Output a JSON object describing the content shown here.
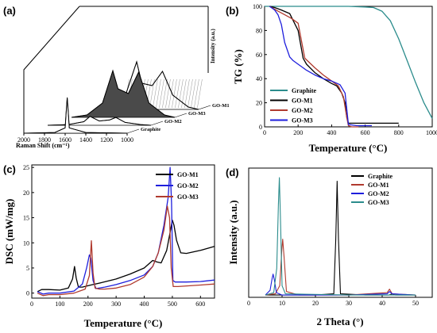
{
  "chart_data": [
    {
      "panel": "(a)",
      "type": "line",
      "style": "3d-waterfall",
      "xlabel": "Raman Shift (cm⁻¹)",
      "ylabel": "Intensity (a.u.)",
      "xticks": [
        2000,
        1800,
        1600,
        1400,
        1200,
        1000
      ],
      "series": [
        {
          "name": "Graphite",
          "x": [
            2000,
            1700,
            1600,
            1590,
            1580,
            1570,
            1560,
            1400,
            1000
          ],
          "y": [
            0,
            0.02,
            0.15,
            0.6,
            1.0,
            0.6,
            0.15,
            0.02,
            0
          ]
        },
        {
          "name": "GO-M2",
          "x": [
            2000,
            1800,
            1650,
            1590,
            1500,
            1400,
            1340,
            1250,
            1100,
            1000
          ],
          "y": [
            0,
            0.02,
            0.1,
            0.25,
            0.12,
            0.15,
            0.22,
            0.08,
            0.02,
            0
          ]
        },
        {
          "name": "GO-M3",
          "x": [
            2000,
            1850,
            1700,
            1600,
            1550,
            1450,
            1350,
            1250,
            1100,
            1000
          ],
          "y": [
            0,
            0.05,
            0.3,
            0.98,
            0.6,
            0.5,
            0.95,
            0.3,
            0.05,
            0
          ]
        },
        {
          "name": "GO-M1",
          "x": [
            2000,
            1850,
            1700,
            1600,
            1550,
            1450,
            1350,
            1250,
            1100,
            1000
          ],
          "y": [
            0,
            0.05,
            0.35,
            1.0,
            0.55,
            0.5,
            0.8,
            0.3,
            0.05,
            0
          ]
        }
      ],
      "colors": {
        "GO-M1": "#000000",
        "GO-M3": "#000000",
        "GO-M2": "#000000",
        "Graphite": "#000000"
      }
    },
    {
      "panel": "(b)",
      "type": "line",
      "xlabel": "Temperature (°C)",
      "ylabel": "TG (%)",
      "xlim": [
        0,
        1000
      ],
      "ylim": [
        0,
        100
      ],
      "xticks": [
        0,
        200,
        400,
        600,
        800,
        1000
      ],
      "yticks": [
        0,
        20,
        40,
        60,
        80,
        100
      ],
      "legend": "bottom-left",
      "series": [
        {
          "name": "Graphite",
          "color": "#2b8c8c",
          "x": [
            0,
            100,
            300,
            500,
            600,
            650,
            700,
            750,
            800,
            850,
            900,
            950,
            1000
          ],
          "y": [
            100,
            100,
            100,
            100,
            99.5,
            99,
            96,
            88,
            73,
            55,
            37,
            20,
            7
          ]
        },
        {
          "name": "GO-M1",
          "color": "#000000",
          "x": [
            30,
            60,
            100,
            150,
            200,
            230,
            250,
            300,
            350,
            400,
            430,
            460,
            480,
            490,
            500,
            520,
            600,
            700,
            800
          ],
          "y": [
            100,
            99,
            97,
            94,
            80,
            57,
            52,
            45,
            40,
            36,
            34,
            28,
            20,
            8,
            3,
            3,
            3,
            3,
            3
          ]
        },
        {
          "name": "GO-M2",
          "color": "#b03a2e",
          "x": [
            30,
            80,
            120,
            160,
            200,
            240,
            300,
            350,
            400,
            440,
            470,
            490,
            500,
            520,
            560
          ],
          "y": [
            100,
            96,
            93,
            90,
            86,
            57,
            49,
            43,
            38,
            34,
            25,
            8,
            1,
            0,
            0
          ]
        },
        {
          "name": "GO-M3",
          "color": "#1e1edc",
          "x": [
            30,
            60,
            80,
            100,
            120,
            150,
            170,
            200,
            250,
            300,
            350,
            400,
            450,
            480,
            490,
            500,
            550,
            640
          ],
          "y": [
            100,
            97,
            93,
            85,
            70,
            58,
            55,
            52,
            47,
            43,
            40,
            38,
            35,
            28,
            15,
            2,
            1,
            1
          ]
        }
      ]
    },
    {
      "panel": "(c)",
      "type": "line",
      "xlabel": "Temperature (°C)",
      "ylabel": "DSC (mW/mg)",
      "xlim": [
        0,
        650
      ],
      "ylim": [
        -1,
        25.5
      ],
      "xticks": [
        0,
        100,
        200,
        300,
        400,
        500,
        600
      ],
      "yticks": [
        0,
        5,
        10,
        15,
        20,
        25
      ],
      "legend": "top-right",
      "series": [
        {
          "name": "GO-M1",
          "color": "#000000",
          "x": [
            20,
            35,
            60,
            100,
            130,
            145,
            152,
            158,
            166,
            180,
            210,
            250,
            300,
            350,
            400,
            430,
            445,
            460,
            480,
            495,
            500,
            506,
            515,
            530,
            550,
            600,
            650
          ],
          "y": [
            0.3,
            0.7,
            0.7,
            0.6,
            1.0,
            2.8,
            5.3,
            3.0,
            1.2,
            1.2,
            1.6,
            2.1,
            2.8,
            3.8,
            5.0,
            6.5,
            6.2,
            6.0,
            8.5,
            13.0,
            14.5,
            13.5,
            10.5,
            8.0,
            7.9,
            8.5,
            9.3
          ]
        },
        {
          "name": "GO-M2",
          "color": "#1e1edc",
          "x": [
            20,
            40,
            60,
            100,
            150,
            180,
            195,
            205,
            210,
            218,
            228,
            260,
            300,
            350,
            400,
            430,
            450,
            470,
            485,
            492,
            497,
            502,
            510,
            550,
            600,
            650
          ],
          "y": [
            0.3,
            -0.2,
            0.0,
            0.0,
            0.4,
            1.8,
            5.0,
            7.6,
            7.0,
            2.5,
            0.9,
            1.2,
            1.7,
            2.5,
            3.6,
            5.3,
            8.0,
            13.5,
            19.0,
            25.0,
            18.0,
            2.5,
            2.2,
            2.2,
            2.3,
            2.6
          ]
        },
        {
          "name": "GO-M3",
          "color": "#b03a2e",
          "x": [
            20,
            40,
            60,
            100,
            150,
            190,
            205,
            212,
            218,
            225,
            240,
            260,
            300,
            350,
            400,
            430,
            450,
            470,
            482,
            490,
            496,
            503,
            520,
            600,
            650
          ],
          "y": [
            0.0,
            -0.5,
            -0.3,
            -0.3,
            0.0,
            0.8,
            3.5,
            10.4,
            4.0,
            1.0,
            0.8,
            0.8,
            1.0,
            1.7,
            3.2,
            5.3,
            8.0,
            12.5,
            17.3,
            15.0,
            5.0,
            1.3,
            1.3,
            1.6,
            1.8
          ]
        }
      ]
    },
    {
      "panel": "(d)",
      "type": "line",
      "xlabel": "2 Theta (°)",
      "ylabel": "Intensity (a.u.)",
      "xlim": [
        0,
        55
      ],
      "xticks": [
        0,
        10,
        20,
        30,
        40,
        50
      ],
      "legend": "top-right",
      "series": [
        {
          "name": "Graphite",
          "color": "#000000",
          "x": [
            5,
            20,
            25.5,
            26.1,
            26.5,
            26.9,
            27.5,
            35,
            42,
            43,
            44,
            50
          ],
          "y": [
            0.02,
            0.02,
            0.03,
            0.5,
            1.0,
            0.5,
            0.03,
            0.02,
            0.02,
            0.03,
            0.02,
            0.02
          ]
        },
        {
          "name": "GO-M1",
          "color": "#b03a2e",
          "x": [
            5,
            8,
            9.3,
            9.9,
            10.2,
            10.6,
            11.3,
            15,
            30,
            41.5,
            42.2,
            43,
            50
          ],
          "y": [
            0.02,
            0.03,
            0.1,
            0.4,
            0.5,
            0.35,
            0.05,
            0.02,
            0.02,
            0.04,
            0.07,
            0.03,
            0.02
          ]
        },
        {
          "name": "GO-M2",
          "color": "#1e1edc",
          "x": [
            5,
            6.4,
            7.0,
            7.3,
            7.7,
            8.3,
            10,
            30,
            41.5,
            42.2,
            43,
            50
          ],
          "y": [
            0.02,
            0.06,
            0.16,
            0.2,
            0.15,
            0.04,
            0.02,
            0.02,
            0.03,
            0.05,
            0.03,
            0.02
          ]
        },
        {
          "name": "GO-M3",
          "color": "#2b8c8c",
          "x": [
            5,
            7.5,
            8.4,
            8.9,
            9.2,
            9.5,
            10.0,
            11,
            30,
            50
          ],
          "y": [
            0.02,
            0.04,
            0.25,
            0.8,
            1.03,
            0.7,
            0.1,
            0.03,
            0.02,
            0.02
          ]
        }
      ]
    }
  ]
}
